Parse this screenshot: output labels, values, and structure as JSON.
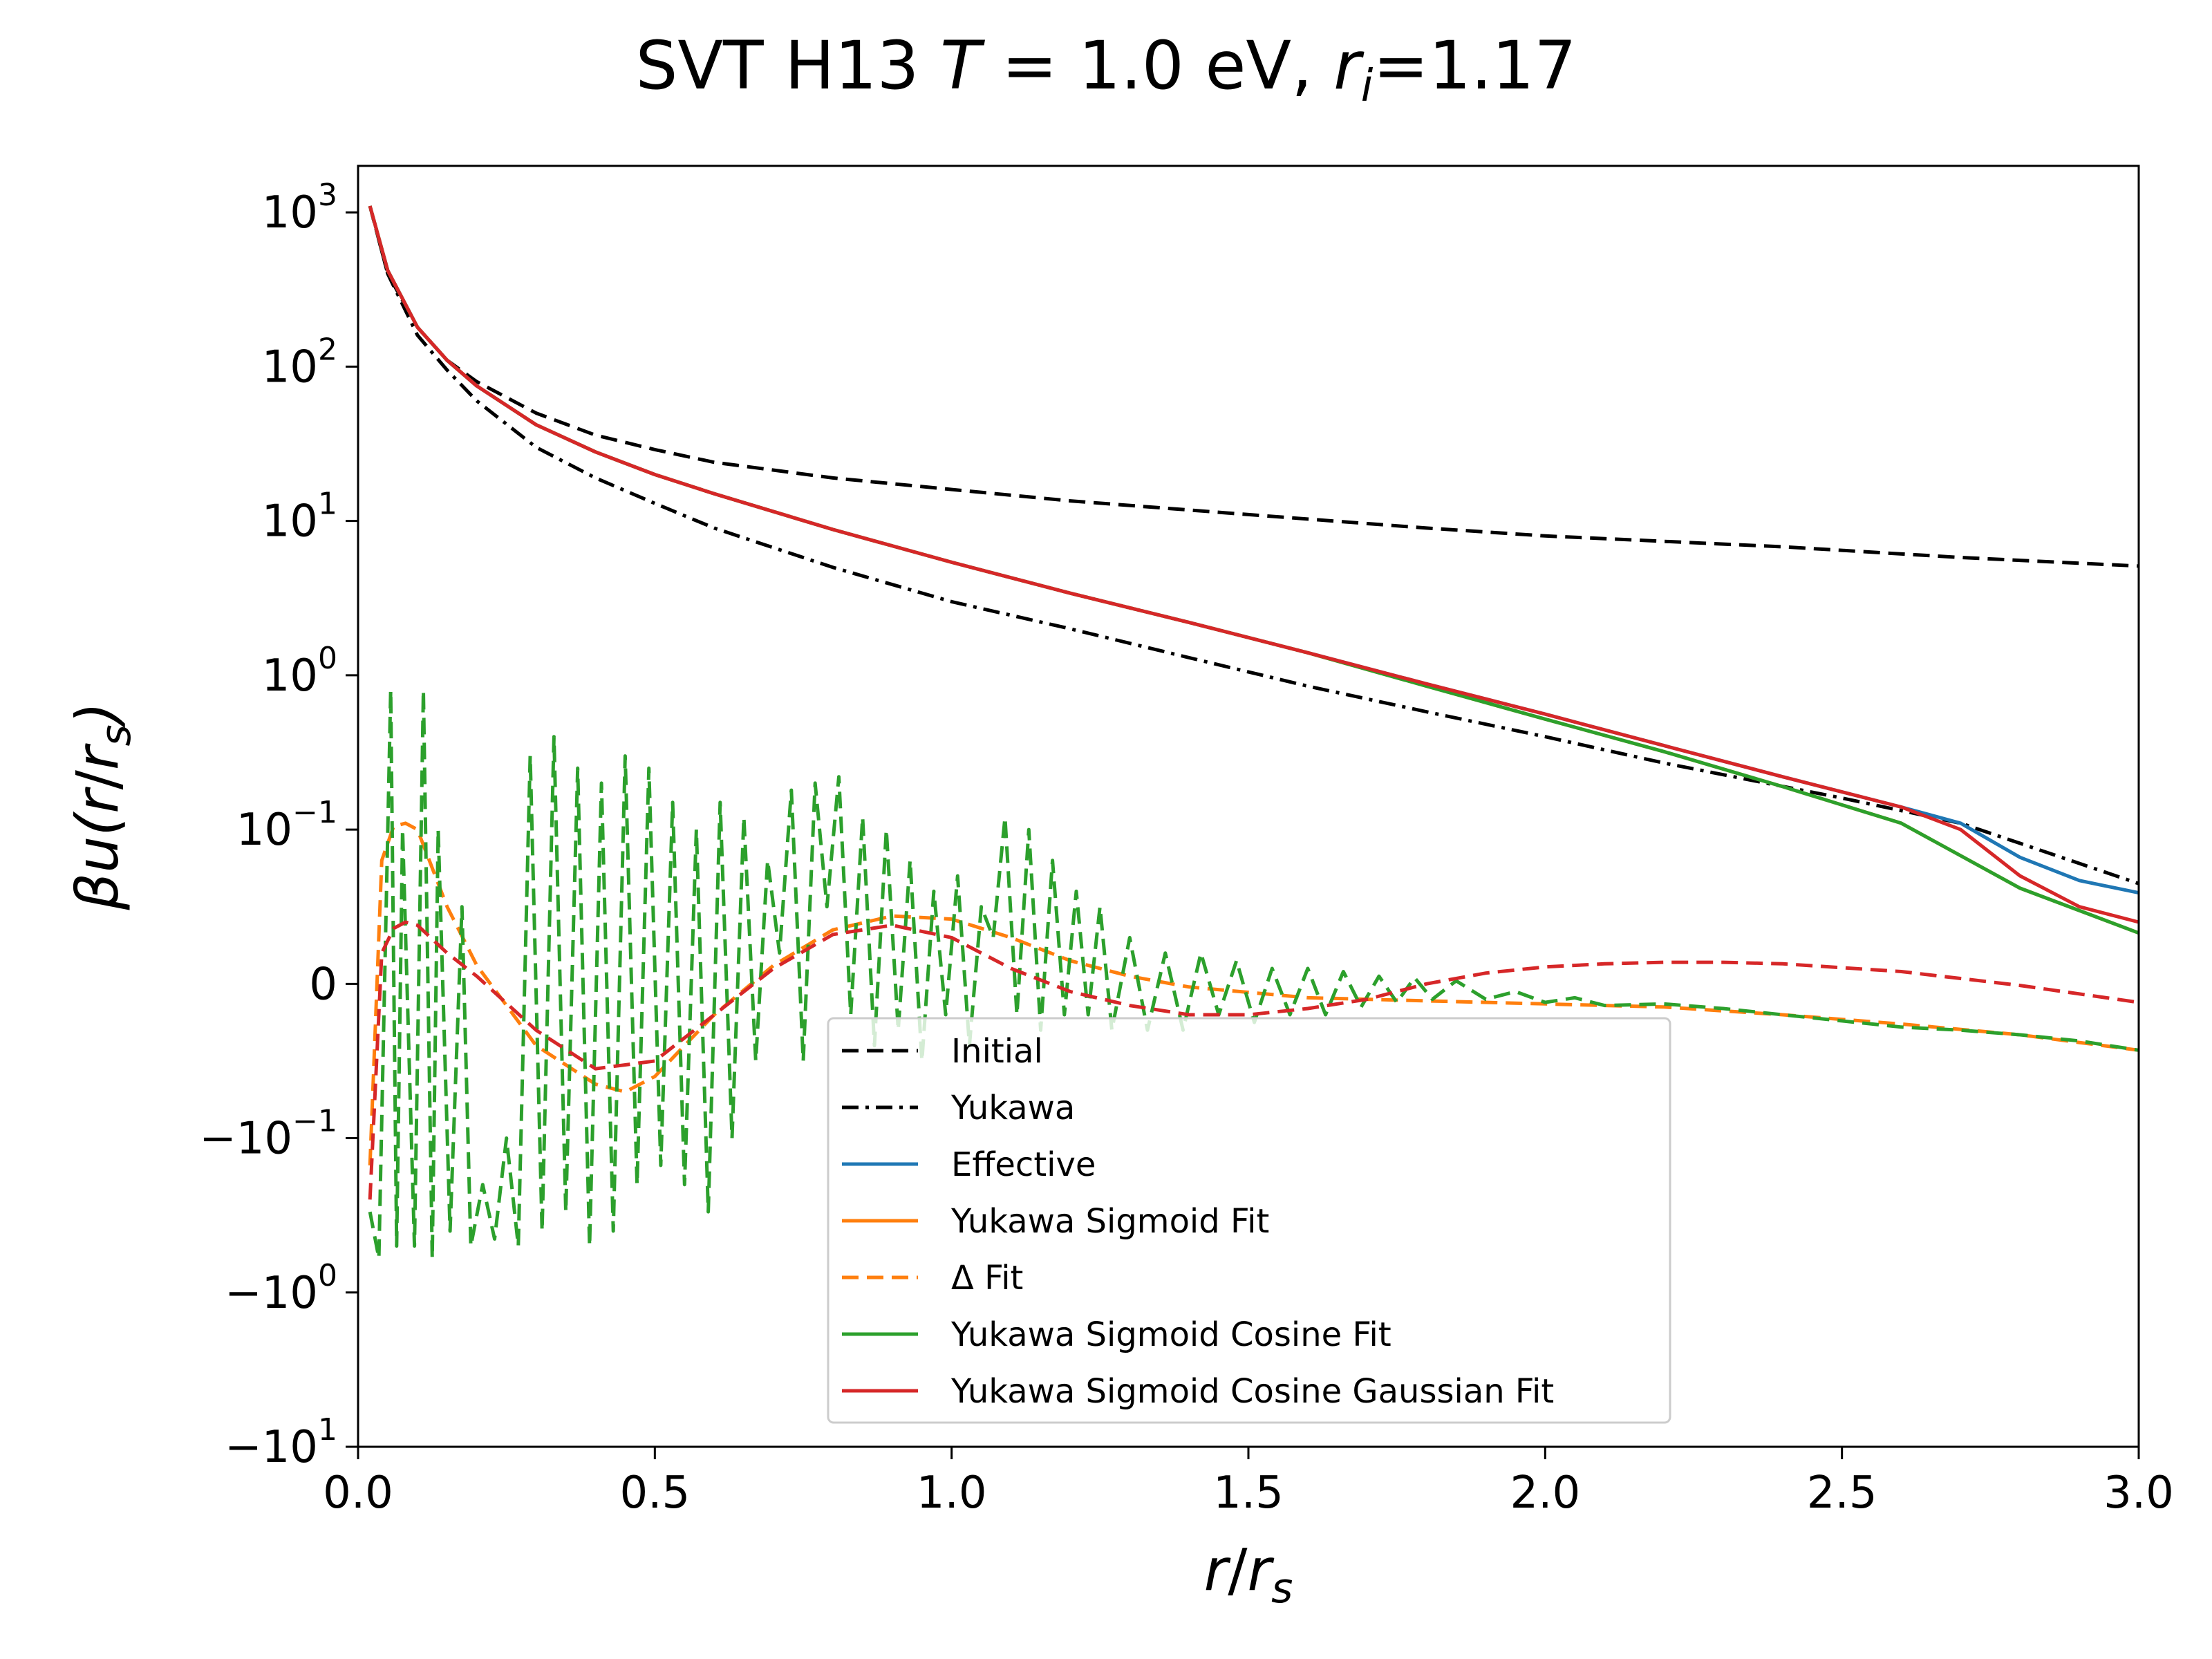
{
  "chart_data": {
    "type": "line",
    "title": "SVT H13 T = 1.0 eV, r_i=1.17",
    "title_parts": [
      "SVT H13 ",
      "T",
      " = 1.0 eV, ",
      "r",
      "i",
      "=1.17"
    ],
    "xlabel": "r/r_s",
    "xlabel_parts": [
      "r",
      "/",
      "r",
      "s"
    ],
    "ylabel": "βu(r/r_s)",
    "ylabel_parts": [
      "βu(",
      "r",
      "/",
      "r",
      "s",
      ")"
    ],
    "xlim": [
      0,
      3
    ],
    "yscale": "symlog",
    "linthresh": 0.1,
    "ylim": [
      -10,
      2000
    ],
    "grid": false,
    "legend_position": "lower-center",
    "x_ticks": [
      {
        "value": 0.0,
        "label": "0.0"
      },
      {
        "value": 0.5,
        "label": "0.5"
      },
      {
        "value": 1.0,
        "label": "1.0"
      },
      {
        "value": 1.5,
        "label": "1.5"
      },
      {
        "value": 2.0,
        "label": "2.0"
      },
      {
        "value": 2.5,
        "label": "2.5"
      },
      {
        "value": 3.0,
        "label": "3.0"
      }
    ],
    "y_ticks": [
      {
        "value": 1000,
        "base": "10",
        "sign": "",
        "exp": "3"
      },
      {
        "value": 100,
        "base": "10",
        "sign": "",
        "exp": "2"
      },
      {
        "value": 10,
        "base": "10",
        "sign": "",
        "exp": "1"
      },
      {
        "value": 1,
        "base": "10",
        "sign": "",
        "exp": "0"
      },
      {
        "value": 0.1,
        "base": "10",
        "sign": "",
        "exp": "−1"
      },
      {
        "value": 0,
        "base": "0",
        "sign": "",
        "exp": ""
      },
      {
        "value": -0.1,
        "base": "10",
        "sign": "−",
        "exp": "−1"
      },
      {
        "value": -1,
        "base": "10",
        "sign": "−",
        "exp": "0"
      },
      {
        "value": -10,
        "base": "10",
        "sign": "−",
        "exp": "1"
      }
    ],
    "series": [
      {
        "name": "Initial",
        "color": "#000000",
        "dash": "dashed",
        "x": [
          0.02,
          0.05,
          0.1,
          0.15,
          0.2,
          0.3,
          0.4,
          0.5,
          0.6,
          0.8,
          1.0,
          1.2,
          1.5,
          1.8,
          2.0,
          2.4,
          2.7,
          3.0
        ],
        "y": [
          1100,
          400,
          180,
          110,
          80,
          50,
          36,
          29,
          24,
          19,
          16,
          13.5,
          11,
          9,
          8,
          6.8,
          5.8,
          5.1
        ]
      },
      {
        "name": "Yukawa",
        "color": "#000000",
        "dash": "dashdot",
        "x": [
          0.02,
          0.05,
          0.1,
          0.15,
          0.2,
          0.3,
          0.4,
          0.5,
          0.6,
          0.8,
          1.0,
          1.2,
          1.4,
          1.6,
          1.8,
          2.0,
          2.2,
          2.5,
          2.7,
          3.0
        ],
        "y": [
          1100,
          400,
          160,
          95,
          60,
          30,
          19,
          13,
          9,
          5,
          3,
          2,
          1.3,
          0.85,
          0.58,
          0.4,
          0.27,
          0.16,
          0.11,
          0.065
        ]
      },
      {
        "name": "Effective",
        "color": "#1f77b4",
        "dash": "solid",
        "x": [
          0.02,
          0.05,
          0.1,
          0.15,
          0.2,
          0.3,
          0.4,
          0.5,
          0.6,
          0.8,
          1.0,
          1.2,
          1.4,
          1.6,
          1.8,
          2.0,
          2.2,
          2.4,
          2.6,
          2.7,
          2.8,
          2.9,
          3.0
        ],
        "y": [
          1100,
          420,
          180,
          110,
          75,
          42,
          28,
          20,
          15,
          8.8,
          5.4,
          3.4,
          2.2,
          1.4,
          0.88,
          0.56,
          0.35,
          0.22,
          0.14,
          0.11,
          0.082,
          0.067,
          0.059
        ]
      },
      {
        "name": "Yukawa Sigmoid Fit",
        "color": "#ff7f0e",
        "dash": "solid",
        "x": [
          0.02,
          0.05,
          0.1,
          0.15,
          0.2,
          0.3,
          0.4,
          0.5,
          0.6,
          0.8,
          1.0,
          1.2,
          1.4,
          1.6,
          1.8,
          2.0,
          2.2,
          2.4,
          2.6,
          2.8,
          3.0
        ],
        "y": [
          1100,
          420,
          180,
          110,
          75,
          42,
          28,
          20,
          15,
          8.8,
          5.4,
          3.4,
          2.2,
          1.4,
          0.85,
          0.52,
          0.32,
          0.19,
          0.11,
          0.062,
          0.033
        ]
      },
      {
        "name": "Δ Fit",
        "color": "#ff7f0e",
        "dash": "dashed",
        "x": [
          0.02,
          0.04,
          0.06,
          0.08,
          0.1,
          0.15,
          0.2,
          0.3,
          0.4,
          0.45,
          0.5,
          0.6,
          0.7,
          0.8,
          0.9,
          1.0,
          1.1,
          1.2,
          1.3,
          1.4,
          1.6,
          1.8,
          2.0,
          2.2,
          2.4,
          2.6,
          2.8,
          3.0
        ],
        "y": [
          -0.15,
          0.08,
          0.105,
          0.11,
          0.1,
          0.05,
          0.012,
          -0.04,
          -0.065,
          -0.07,
          -0.06,
          -0.02,
          0.012,
          0.035,
          0.044,
          0.042,
          0.03,
          0.015,
          0.005,
          -0.002,
          -0.009,
          -0.011,
          -0.013,
          -0.015,
          -0.02,
          -0.026,
          -0.033,
          -0.043
        ]
      },
      {
        "name": "Yukawa Sigmoid Cosine Fit",
        "color": "#2ca02c",
        "dash": "solid",
        "x": [
          0.02,
          0.05,
          0.1,
          0.15,
          0.2,
          0.3,
          0.4,
          0.5,
          0.6,
          0.8,
          1.0,
          1.2,
          1.4,
          1.6,
          1.8,
          2.0,
          2.2,
          2.4,
          2.6,
          2.8,
          3.0
        ],
        "y": [
          1100,
          420,
          180,
          110,
          75,
          42,
          28,
          20,
          15,
          8.8,
          5.4,
          3.4,
          2.2,
          1.4,
          0.85,
          0.52,
          0.32,
          0.19,
          0.11,
          0.062,
          0.033
        ]
      },
      {
        "name": "Δ Cosine Fit (unlabeled)",
        "color": "#2ca02c",
        "dash": "dashed",
        "x": [
          0.02,
          0.035,
          0.055,
          0.065,
          0.075,
          0.095,
          0.11,
          0.125,
          0.135,
          0.155,
          0.175,
          0.19,
          0.21,
          0.23,
          0.25,
          0.27,
          0.29,
          0.31,
          0.33,
          0.35,
          0.37,
          0.39,
          0.41,
          0.43,
          0.45,
          0.47,
          0.49,
          0.51,
          0.53,
          0.55,
          0.57,
          0.59,
          0.61,
          0.63,
          0.65,
          0.67,
          0.69,
          0.71,
          0.73,
          0.75,
          0.77,
          0.79,
          0.81,
          0.83,
          0.85,
          0.87,
          0.89,
          0.91,
          0.93,
          0.95,
          0.97,
          0.99,
          1.01,
          1.03,
          1.05,
          1.07,
          1.09,
          1.11,
          1.13,
          1.15,
          1.17,
          1.19,
          1.21,
          1.23,
          1.25,
          1.27,
          1.3,
          1.33,
          1.36,
          1.39,
          1.42,
          1.45,
          1.48,
          1.51,
          1.54,
          1.57,
          1.6,
          1.63,
          1.66,
          1.69,
          1.72,
          1.75,
          1.78,
          1.81,
          1.85,
          1.9,
          1.95,
          2.0,
          2.05,
          2.1,
          2.2,
          2.3,
          2.4,
          2.5,
          2.6,
          2.7,
          2.8,
          2.9,
          3.0
        ],
        "y": [
          -0.3,
          -0.6,
          0.8,
          -0.5,
          0.1,
          -0.5,
          0.8,
          -0.6,
          0.1,
          -0.4,
          0.05,
          -0.5,
          -0.2,
          -0.45,
          -0.1,
          -0.5,
          0.3,
          -0.4,
          0.4,
          -0.3,
          0.25,
          -0.5,
          0.2,
          -0.4,
          0.3,
          -0.2,
          0.25,
          -0.15,
          0.15,
          -0.2,
          0.1,
          -0.3,
          0.15,
          -0.1,
          0.12,
          -0.05,
          0.08,
          0.02,
          0.18,
          -0.05,
          0.2,
          0.05,
          0.22,
          -0.02,
          0.12,
          -0.04,
          0.1,
          -0.03,
          0.08,
          -0.05,
          0.06,
          -0.02,
          0.07,
          -0.04,
          0.05,
          0.03,
          0.12,
          -0.02,
          0.1,
          -0.03,
          0.08,
          -0.02,
          0.06,
          -0.02,
          0.05,
          -0.03,
          0.03,
          -0.03,
          0.02,
          -0.03,
          0.02,
          -0.02,
          0.015,
          -0.025,
          0.01,
          -0.02,
          0.01,
          -0.02,
          0.008,
          -0.015,
          0.005,
          -0.012,
          0.004,
          -0.01,
          0.002,
          -0.01,
          -0.005,
          -0.012,
          -0.009,
          -0.014,
          -0.013,
          -0.016,
          -0.02,
          -0.024,
          -0.028,
          -0.03,
          -0.033,
          -0.037,
          -0.043
        ]
      },
      {
        "name": "Yukawa Sigmoid Cosine Gaussian Fit",
        "color": "#d62728",
        "dash": "solid",
        "x": [
          0.02,
          0.05,
          0.1,
          0.15,
          0.2,
          0.3,
          0.4,
          0.5,
          0.6,
          0.8,
          1.0,
          1.2,
          1.4,
          1.6,
          1.8,
          2.0,
          2.2,
          2.4,
          2.6,
          2.7,
          2.8,
          2.9,
          3.0
        ],
        "y": [
          1100,
          420,
          180,
          110,
          75,
          42,
          28,
          20,
          15,
          8.8,
          5.4,
          3.4,
          2.2,
          1.4,
          0.88,
          0.56,
          0.35,
          0.22,
          0.14,
          0.1,
          0.07,
          0.05,
          0.04
        ]
      },
      {
        "name": "Δ Gaussian Fit (unlabeled)",
        "color": "#d62728",
        "dash": "dashed",
        "x": [
          0.02,
          0.04,
          0.06,
          0.08,
          0.1,
          0.15,
          0.2,
          0.3,
          0.4,
          0.5,
          0.6,
          0.7,
          0.8,
          0.9,
          1.0,
          1.1,
          1.2,
          1.3,
          1.4,
          1.5,
          1.6,
          1.7,
          1.8,
          1.9,
          2.0,
          2.1,
          2.2,
          2.3,
          2.4,
          2.6,
          2.8,
          3.0
        ],
        "y": [
          -0.25,
          0.02,
          0.036,
          0.04,
          0.038,
          0.02,
          0.005,
          -0.03,
          -0.055,
          -0.05,
          -0.02,
          0.01,
          0.032,
          0.038,
          0.03,
          0.01,
          -0.005,
          -0.014,
          -0.02,
          -0.02,
          -0.016,
          -0.01,
          0.0,
          0.007,
          0.011,
          0.013,
          0.014,
          0.014,
          0.013,
          0.008,
          -0.001,
          -0.012
        ]
      }
    ],
    "legend": {
      "entries": [
        {
          "label": "Initial",
          "color": "#000000",
          "dash": "dashed"
        },
        {
          "label": "Yukawa",
          "color": "#000000",
          "dash": "dashdot"
        },
        {
          "label": "Effective",
          "color": "#1f77b4",
          "dash": "solid"
        },
        {
          "label": "Yukawa Sigmoid Fit",
          "color": "#ff7f0e",
          "dash": "solid"
        },
        {
          "label": "Δ Fit",
          "color": "#ff7f0e",
          "dash": "dashed"
        },
        {
          "label": "Yukawa Sigmoid Cosine Fit",
          "color": "#2ca02c",
          "dash": "solid"
        },
        {
          "label": "Yukawa Sigmoid Cosine Gaussian Fit",
          "color": "#d62728",
          "dash": "solid"
        }
      ]
    }
  }
}
